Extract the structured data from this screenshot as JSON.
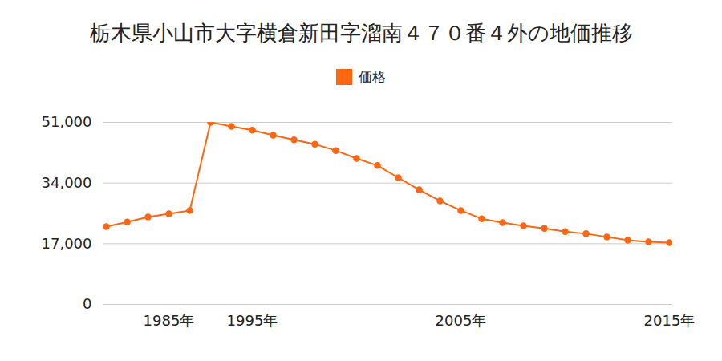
{
  "chart_data": {
    "type": "line",
    "title": "栃木県小山市大字横倉新田字溜南４７０番４外の地価推移",
    "categories": [
      null,
      null,
      null,
      "1985年",
      null,
      null,
      null,
      "1995年",
      null,
      null,
      null,
      null,
      null,
      null,
      null,
      null,
      null,
      "2005年",
      null,
      null,
      null,
      null,
      null,
      null,
      null,
      null,
      null,
      "2015年"
    ],
    "series": [
      {
        "name": "価格",
        "color": "#ff6611",
        "marker": "circle",
        "values": [
          21800,
          23100,
          24500,
          25400,
          26300,
          51000,
          49900,
          48800,
          47400,
          46100,
          44900,
          43100,
          40900,
          38900,
          35500,
          32100,
          29000,
          26300,
          24000,
          22900,
          22000,
          21300,
          20400,
          19800,
          18900,
          18000,
          17500,
          17300
        ]
      }
    ],
    "ylim": [
      0,
      51000
    ],
    "yticks": [
      0,
      {
        "value": 17000,
        "label": "17,000"
      },
      {
        "value": 34000,
        "label": "34,000"
      },
      {
        "value": 51000,
        "label": "51,000"
      }
    ],
    "grid": true,
    "legend": "top"
  }
}
